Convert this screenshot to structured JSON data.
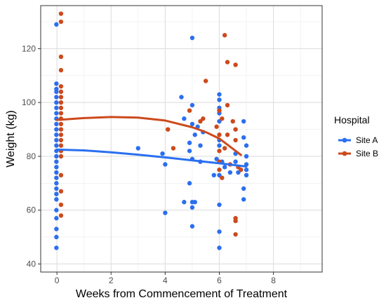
{
  "chart_data": {
    "type": "scatter",
    "xlabel": "Weeks from Commencement of Treatment",
    "ylabel": "Weight (kg)",
    "xlim": [
      -0.6,
      9.8
    ],
    "ylim": [
      37,
      136
    ],
    "x_ticks": [
      0,
      2,
      4,
      6,
      8
    ],
    "y_ticks": [
      40,
      60,
      80,
      100,
      120
    ],
    "grid": true,
    "legend": {
      "title": "Hospital",
      "placement": "right"
    },
    "series": [
      {
        "name": "Site A",
        "color": "#2b6ff0",
        "points": [
          [
            -0.02,
            129
          ],
          [
            -0.02,
            107
          ],
          [
            -0.02,
            105
          ],
          [
            -0.02,
            104
          ],
          [
            -0.02,
            102
          ],
          [
            -0.02,
            100
          ],
          [
            -0.02,
            98
          ],
          [
            -0.02,
            96
          ],
          [
            -0.02,
            94
          ],
          [
            -0.02,
            92
          ],
          [
            -0.02,
            90
          ],
          [
            -0.02,
            88
          ],
          [
            -0.02,
            86
          ],
          [
            -0.02,
            84
          ],
          [
            -0.02,
            82
          ],
          [
            -0.02,
            80
          ],
          [
            -0.02,
            78
          ],
          [
            -0.02,
            76
          ],
          [
            -0.02,
            74
          ],
          [
            -0.02,
            72
          ],
          [
            -0.02,
            70
          ],
          [
            -0.02,
            68
          ],
          [
            -0.02,
            66
          ],
          [
            -0.02,
            64
          ],
          [
            -0.02,
            60
          ],
          [
            -0.02,
            57
          ],
          [
            -0.02,
            53
          ],
          [
            -0.02,
            50
          ],
          [
            -0.02,
            46
          ],
          [
            3.0,
            83
          ],
          [
            3.9,
            81
          ],
          [
            4.0,
            77
          ],
          [
            4.0,
            59
          ],
          [
            4.6,
            102
          ],
          [
            4.7,
            94
          ],
          [
            4.7,
            63
          ],
          [
            4.9,
            85
          ],
          [
            4.9,
            82
          ],
          [
            4.9,
            70
          ],
          [
            5.0,
            124
          ],
          [
            5.0,
            99
          ],
          [
            5.0,
            92
          ],
          [
            5.0,
            79
          ],
          [
            5.0,
            63
          ],
          [
            5.0,
            61
          ],
          [
            5.0,
            54
          ],
          [
            5.1,
            88
          ],
          [
            5.1,
            63
          ],
          [
            5.2,
            91
          ],
          [
            5.3,
            84
          ],
          [
            5.3,
            78
          ],
          [
            5.4,
            89
          ],
          [
            5.8,
            73
          ],
          [
            5.9,
            79
          ],
          [
            6.0,
            103
          ],
          [
            6.0,
            101
          ],
          [
            6.0,
            98
          ],
          [
            6.0,
            96
          ],
          [
            6.0,
            93
          ],
          [
            6.0,
            86
          ],
          [
            6.0,
            84
          ],
          [
            6.0,
            73
          ],
          [
            6.0,
            62
          ],
          [
            6.0,
            52
          ],
          [
            6.0,
            46
          ],
          [
            6.1,
            78
          ],
          [
            6.2,
            76
          ],
          [
            6.4,
            74
          ],
          [
            6.6,
            81
          ],
          [
            6.6,
            78
          ],
          [
            6.7,
            74
          ],
          [
            6.9,
            93
          ],
          [
            6.9,
            87
          ],
          [
            6.9,
            68
          ],
          [
            6.9,
            64
          ],
          [
            7.0,
            84
          ],
          [
            7.0,
            80
          ],
          [
            7.0,
            77
          ],
          [
            7.0,
            75
          ],
          [
            7.0,
            73
          ]
        ],
        "trend": [
          [
            0,
            82.5
          ],
          [
            1,
            82.2
          ],
          [
            2,
            81.5
          ],
          [
            3,
            80.6
          ],
          [
            4,
            79.6
          ],
          [
            5,
            78.5
          ],
          [
            6,
            77.4
          ],
          [
            7,
            76.2
          ]
        ]
      },
      {
        "name": "Site B",
        "color": "#cc4a1c",
        "points": [
          [
            0.15,
            133
          ],
          [
            0.15,
            130
          ],
          [
            0.15,
            117
          ],
          [
            0.15,
            112
          ],
          [
            0.15,
            106
          ],
          [
            0.15,
            104
          ],
          [
            0.15,
            102
          ],
          [
            0.15,
            100
          ],
          [
            0.15,
            98
          ],
          [
            0.15,
            96
          ],
          [
            0.15,
            94
          ],
          [
            0.15,
            92
          ],
          [
            0.15,
            90
          ],
          [
            0.15,
            88
          ],
          [
            0.15,
            86
          ],
          [
            0.15,
            84
          ],
          [
            0.15,
            82
          ],
          [
            0.15,
            80
          ],
          [
            0.15,
            73
          ],
          [
            0.15,
            67
          ],
          [
            0.15,
            62
          ],
          [
            0.15,
            58
          ],
          [
            4.1,
            90
          ],
          [
            4.3,
            83
          ],
          [
            4.9,
            97
          ],
          [
            5.3,
            93
          ],
          [
            5.4,
            94
          ],
          [
            5.5,
            108
          ],
          [
            5.9,
            91
          ],
          [
            6.0,
            97
          ],
          [
            6.0,
            88
          ],
          [
            6.0,
            82
          ],
          [
            6.0,
            78
          ],
          [
            6.0,
            75
          ],
          [
            6.1,
            94
          ],
          [
            6.1,
            72
          ],
          [
            6.2,
            125
          ],
          [
            6.2,
            83
          ],
          [
            6.3,
            115
          ],
          [
            6.3,
            99
          ],
          [
            6.3,
            88
          ],
          [
            6.4,
            77
          ],
          [
            6.5,
            93
          ],
          [
            6.6,
            114
          ],
          [
            6.6,
            90
          ],
          [
            6.6,
            86
          ],
          [
            6.6,
            57
          ],
          [
            6.6,
            56
          ],
          [
            6.6,
            51
          ],
          [
            6.7,
            76
          ],
          [
            6.8,
            75
          ]
        ],
        "trend": [
          [
            0,
            93.5
          ],
          [
            1,
            94.2
          ],
          [
            2,
            94.6
          ],
          [
            3,
            94.4
          ],
          [
            4,
            93.3
          ],
          [
            5,
            90.8
          ],
          [
            5.5,
            89.0
          ],
          [
            6,
            86.6
          ],
          [
            6.5,
            82.8
          ],
          [
            6.8,
            80.5
          ]
        ]
      }
    ]
  }
}
